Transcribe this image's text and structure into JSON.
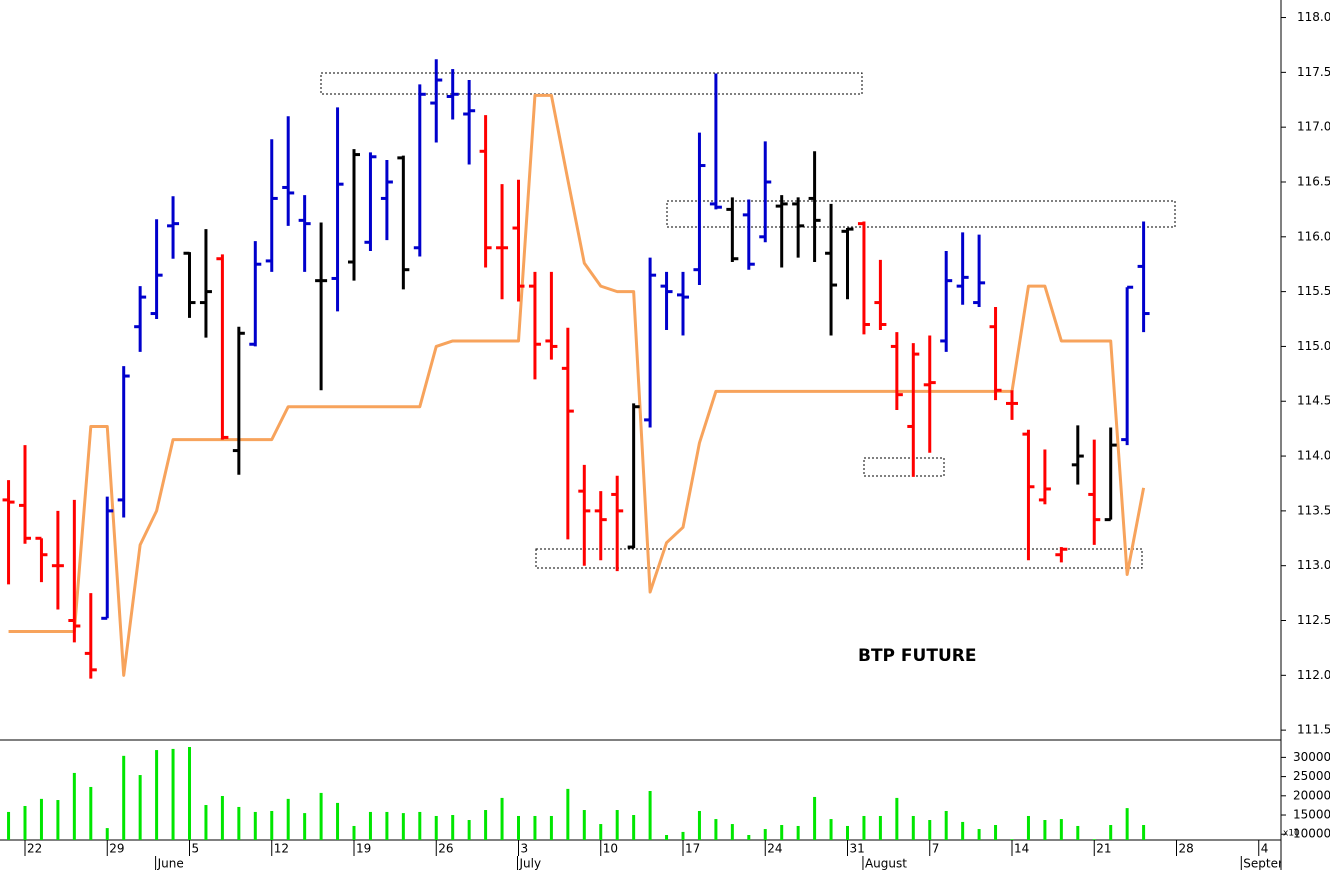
{
  "chart_data": [
    {
      "type": "ohlc",
      "annotation": "BTP FUTURE",
      "ylim": [
        111.41,
        118.16
      ],
      "yticks": [
        {
          "value": 111.5,
          "label": "111.5"
        },
        {
          "value": 112,
          "label": "112.0"
        },
        {
          "value": 112.5,
          "label": "112.5"
        },
        {
          "value": 113,
          "label": "113.0"
        },
        {
          "value": 113.5,
          "label": "113.5"
        },
        {
          "value": 114,
          "label": "114.0"
        },
        {
          "value": 114.5,
          "label": "114.5"
        },
        {
          "value": 115,
          "label": "115.0"
        },
        {
          "value": 115.5,
          "label": "115.5"
        },
        {
          "value": 116,
          "label": "116.0"
        },
        {
          "value": 116.5,
          "label": "116.5"
        },
        {
          "value": 117,
          "label": "117.0"
        },
        {
          "value": 117.5,
          "label": "117.5"
        },
        {
          "value": 118,
          "label": "118.0"
        }
      ],
      "open": [
        113.6,
        113.55,
        113.25,
        113.0,
        112.5,
        112.2,
        112.52,
        113.6,
        115.18,
        115.3,
        116.1,
        115.85,
        115.4,
        115.8,
        114.05,
        115.02,
        115.78,
        116.45,
        116.15,
        115.6,
        115.62,
        115.77,
        115.95,
        116.35,
        116.72,
        115.9,
        117.22,
        117.28,
        117.12,
        116.78,
        115.9,
        116.08,
        115.55,
        115.05,
        114.8,
        113.68,
        113.5,
        113.65,
        113.17,
        114.33,
        115.55,
        115.47,
        115.7,
        116.3,
        116.25,
        116.2,
        116.0,
        116.28,
        116.3,
        116.35,
        115.85,
        116.05,
        116.12,
        115.4,
        115.0,
        114.27,
        114.65,
        115.05,
        115.55,
        115.4,
        115.18,
        114.48,
        114.2,
        113.6,
        113.1,
        113.92,
        113.65,
        113.42,
        114.15,
        115.73,
        null,
        null,
        null,
        null,
        null,
        null,
        null
      ],
      "high": [
        113.78,
        114.1,
        113.25,
        113.5,
        113.6,
        112.75,
        113.63,
        114.82,
        115.55,
        116.16,
        116.37,
        115.86,
        116.07,
        115.84,
        115.18,
        115.96,
        116.89,
        117.1,
        116.38,
        116.13,
        117.18,
        116.8,
        116.77,
        116.7,
        116.74,
        117.39,
        117.62,
        117.53,
        117.43,
        117.11,
        116.48,
        116.52,
        115.68,
        115.68,
        115.17,
        113.92,
        113.68,
        113.82,
        114.48,
        115.81,
        115.68,
        115.68,
        116.95,
        117.49,
        116.36,
        116.34,
        116.87,
        116.38,
        116.36,
        116.78,
        116.3,
        116.08,
        116.14,
        115.79,
        115.13,
        115.03,
        115.1,
        115.87,
        116.04,
        116.02,
        115.36,
        114.6,
        114.24,
        114.06,
        113.17,
        114.28,
        114.15,
        114.26,
        115.54,
        116.14,
        null,
        null,
        null,
        null,
        null,
        null,
        null
      ],
      "low": [
        112.83,
        113.2,
        112.85,
        112.6,
        112.3,
        111.97,
        112.52,
        113.44,
        114.95,
        115.25,
        115.8,
        115.26,
        115.08,
        114.15,
        113.83,
        115.0,
        115.68,
        116.1,
        115.68,
        114.6,
        115.32,
        115.6,
        115.87,
        115.97,
        115.52,
        115.82,
        116.86,
        117.07,
        116.66,
        115.72,
        115.43,
        115.41,
        114.7,
        114.88,
        113.24,
        113.0,
        113.05,
        112.95,
        113.16,
        114.26,
        115.15,
        115.1,
        115.56,
        116.25,
        115.77,
        115.7,
        115.95,
        115.72,
        115.81,
        115.77,
        115.1,
        115.43,
        115.11,
        115.15,
        114.42,
        113.81,
        114.03,
        114.95,
        115.38,
        115.36,
        114.51,
        114.33,
        113.05,
        113.56,
        113.03,
        113.74,
        113.19,
        113.42,
        114.1,
        115.13,
        null,
        null,
        null,
        null,
        null,
        null,
        null
      ],
      "close": [
        113.58,
        113.25,
        113.1,
        113.0,
        112.45,
        112.05,
        113.5,
        114.73,
        115.45,
        115.65,
        116.12,
        115.4,
        115.5,
        114.17,
        115.12,
        115.75,
        116.35,
        116.4,
        116.12,
        115.6,
        116.48,
        116.75,
        116.73,
        116.5,
        115.7,
        117.3,
        117.43,
        117.3,
        117.15,
        115.9,
        115.9,
        115.55,
        115.02,
        115.0,
        114.41,
        113.5,
        113.42,
        113.5,
        114.45,
        115.65,
        115.5,
        115.45,
        116.65,
        116.27,
        115.8,
        115.75,
        116.5,
        116.3,
        116.1,
        116.15,
        115.56,
        116.07,
        115.2,
        115.2,
        114.56,
        114.93,
        114.67,
        115.6,
        115.63,
        115.58,
        114.6,
        114.48,
        113.72,
        113.7,
        113.15,
        114.0,
        113.42,
        114.1,
        115.54,
        115.3,
        null,
        null,
        null,
        null,
        null,
        null,
        null
      ],
      "colors": [
        "#ff0000",
        "#ff0000",
        "#ff0000",
        "#ff0000",
        "#ff0000",
        "#ff0000",
        "#0000cc",
        "#0000cc",
        "#0000cc",
        "#0000cc",
        "#0000cc",
        "#000000",
        "#000000",
        "#ff0000",
        "#000000",
        "#0000cc",
        "#0000cc",
        "#0000cc",
        "#0000cc",
        "#000000",
        "#0000cc",
        "#000000",
        "#0000cc",
        "#0000cc",
        "#000000",
        "#0000cc",
        "#0000cc",
        "#0000cc",
        "#0000cc",
        "#ff0000",
        "#ff0000",
        "#ff0000",
        "#ff0000",
        "#ff0000",
        "#ff0000",
        "#ff0000",
        "#ff0000",
        "#ff0000",
        "#000000",
        "#0000cc",
        "#0000cc",
        "#0000cc",
        "#0000cc",
        "#0000cc",
        "#000000",
        "#0000cc",
        "#0000cc",
        "#000000",
        "#000000",
        "#000000",
        "#000000",
        "#000000",
        "#ff0000",
        "#ff0000",
        "#ff0000",
        "#ff0000",
        "#ff0000",
        "#0000cc",
        "#0000cc",
        "#0000cc",
        "#ff0000",
        "#ff0000",
        "#ff0000",
        "#ff0000",
        "#ff0000",
        "#000000",
        "#ff0000",
        "#000000",
        "#0000cc",
        "#0000cc",
        null,
        null,
        null,
        null,
        null,
        null,
        null
      ],
      "line": {
        "color": "#f7a35c",
        "values": [
          112.4,
          112.4,
          112.4,
          112.4,
          112.4,
          114.27,
          114.27,
          112.0,
          113.19,
          113.5,
          114.15,
          114.15,
          114.15,
          114.15,
          114.15,
          114.15,
          114.15,
          114.45,
          114.45,
          114.45,
          114.45,
          114.45,
          114.45,
          114.45,
          114.45,
          114.45,
          115.0,
          115.05,
          115.05,
          115.05,
          115.05,
          115.05,
          117.29,
          117.29,
          116.52,
          115.76,
          115.55,
          115.5,
          115.5,
          112.76,
          113.21,
          113.35,
          114.12,
          114.59,
          114.59,
          114.59,
          114.59,
          114.59,
          114.59,
          114.59,
          114.59,
          114.59,
          114.59,
          114.59,
          114.59,
          114.59,
          114.59,
          114.59,
          114.59,
          114.59,
          114.59,
          114.59,
          115.55,
          115.55,
          115.05,
          115.05,
          115.05,
          115.05,
          112.92,
          113.71,
          null,
          null,
          null,
          null,
          null,
          null,
          null
        ]
      }
    },
    {
      "type": "bar",
      "unit_label": "x10",
      "color": "#00e600",
      "ylim": [
        8500,
        34000
      ],
      "yticks": [
        10000,
        15000,
        20000,
        25000,
        30000
      ],
      "categories": [
        null,
        "22",
        null,
        null,
        null,
        null,
        "29",
        null,
        null,
        null,
        null,
        "5",
        null,
        null,
        null,
        null,
        "12",
        null,
        null,
        null,
        null,
        "19",
        null,
        null,
        null,
        null,
        "26",
        null,
        null,
        null,
        null,
        "3",
        null,
        null,
        null,
        null,
        "10",
        null,
        null,
        null,
        null,
        "17",
        null,
        null,
        null,
        null,
        "24",
        null,
        null,
        null,
        null,
        "31",
        null,
        null,
        null,
        null,
        "7",
        null,
        null,
        null,
        null,
        "14",
        null,
        null,
        null,
        null,
        "21",
        null,
        null,
        null,
        null,
        "28",
        null,
        null,
        null,
        null,
        "4"
      ],
      "month_categories": [
        null,
        null,
        null,
        null,
        null,
        null,
        null,
        null,
        null,
        "June",
        null,
        null,
        null,
        null,
        null,
        null,
        null,
        null,
        null,
        null,
        null,
        null,
        null,
        null,
        null,
        null,
        null,
        null,
        null,
        null,
        null,
        "July",
        null,
        null,
        null,
        null,
        null,
        null,
        null,
        null,
        null,
        null,
        null,
        null,
        null,
        null,
        null,
        null,
        null,
        null,
        null,
        null,
        "August",
        null,
        null,
        null,
        null,
        null,
        null,
        null,
        null,
        null,
        null,
        null,
        null,
        null,
        null,
        null,
        null,
        null,
        null,
        null,
        null,
        null,
        null,
        "September",
        null
      ],
      "values": [
        15800,
        17350,
        19200,
        18900,
        25950,
        22300,
        11600,
        30400,
        25400,
        31900,
        32200,
        32700,
        17600,
        19950,
        17100,
        15800,
        16050,
        19200,
        15500,
        20750,
        18150,
        12150,
        15800,
        15800,
        15500,
        15800,
        14750,
        15000,
        13700,
        16300,
        19450,
        14750,
        14750,
        14750,
        21800,
        16300,
        12650,
        16300,
        15000,
        21250,
        9800,
        10600,
        16050,
        13950,
        12650,
        9800,
        11350,
        12400,
        12150,
        19700,
        13950,
        12150,
        14750,
        14750,
        19450,
        14750,
        13700,
        16050,
        13200,
        11350,
        12400,
        8700,
        14750,
        13700,
        13950,
        12150,
        8700,
        12400,
        16800,
        12400,
        null,
        null,
        null,
        null,
        null,
        null,
        null
      ]
    }
  ]
}
